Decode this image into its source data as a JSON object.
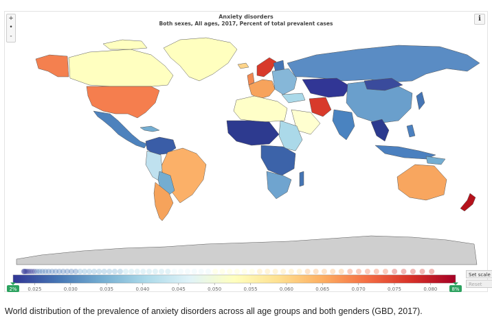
{
  "map": {
    "title": "Anxiety disorders",
    "subtitle": "Both sexes, All ages, 2017, Percent of total prevalent cases",
    "zoom_in_label": "+",
    "zoom_reset_label": "•",
    "zoom_out_label": "-",
    "info_label": "i"
  },
  "legend": {
    "min_handle": "2%",
    "max_handle": "8%",
    "ticks": [
      "0.025",
      "0.030",
      "0.035",
      "0.040",
      "0.045",
      "0.050",
      "0.055",
      "0.060",
      "0.065",
      "0.070",
      "0.075",
      "0.080"
    ],
    "range": [
      0.022,
      0.0835
    ],
    "colors": [
      "#313695",
      "#4575b4",
      "#74add1",
      "#abd9e9",
      "#e0f3f8",
      "#ffffbf",
      "#fee090",
      "#fdae61",
      "#f46d43",
      "#d73027",
      "#a50026"
    ]
  },
  "controls": {
    "set_scale_label": "Set scale",
    "reset_label": "Reset"
  },
  "caption": "World distribution of the prevalence of anxiety disorders across all age groups and both genders (GBD, 2017).",
  "colors": {
    "no_data": "#cfcfcf",
    "ocean": "#ffffff",
    "border": "#555555"
  }
}
